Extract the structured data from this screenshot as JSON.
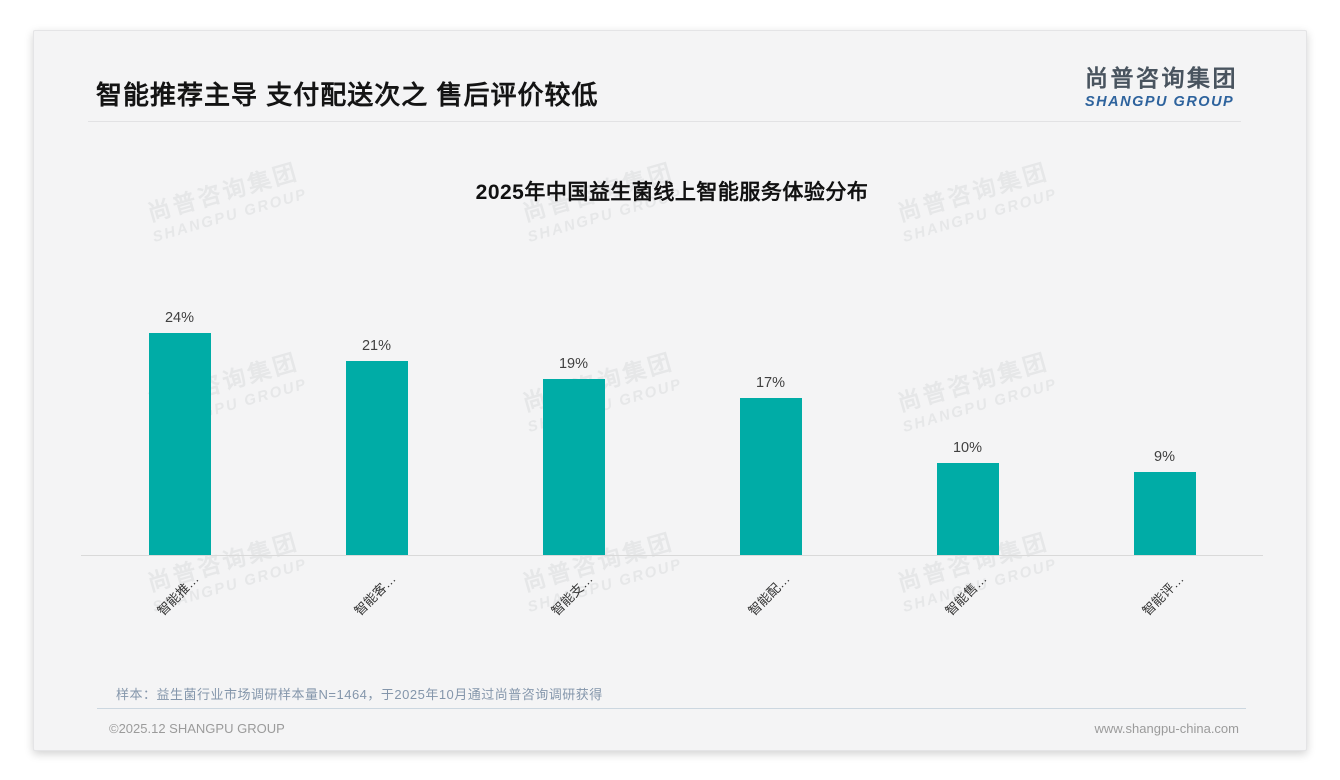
{
  "page": {
    "title": "智能推荐主导 支付配送次之 售后评价较低",
    "logo": {
      "cn": "尚普咨询集团",
      "en": "SHANGPU GROUP"
    },
    "watermark": {
      "line1": "尚普咨询集团",
      "line2": "SHANGPU GROUP"
    },
    "footnote": "样本：益生菌行业市场调研样本量N=1464，于2025年10月通过尚普咨询调研获得",
    "footer": {
      "left": "©2025.12 SHANGPU GROUP",
      "right": "www.shangpu-china.com"
    }
  },
  "chart_data": {
    "type": "bar",
    "title": "2025年中国益生菌线上智能服务体验分布",
    "categories": [
      "智能推…",
      "智能客…",
      "智能支…",
      "智能配…",
      "智能售…",
      "智能评…"
    ],
    "values": [
      24,
      21,
      19,
      17,
      10,
      9
    ],
    "data_labels": [
      "24%",
      "21%",
      "19%",
      "17%",
      "10%",
      "9%"
    ],
    "unit": "%",
    "bar_color": "#00aca6",
    "ylim": [
      0,
      27.5
    ],
    "grid": false,
    "legend": "none",
    "xlabel": "",
    "ylabel": ""
  }
}
